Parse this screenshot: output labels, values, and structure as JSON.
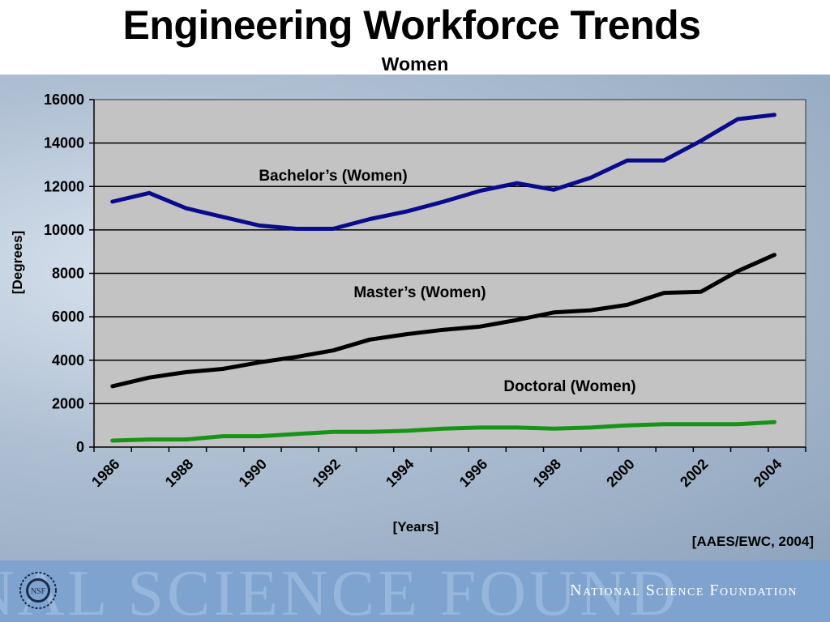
{
  "slide": {
    "title": "Engineering Workforce Trends",
    "subtitle": "Women",
    "source": "[AAES/EWC, 2004]"
  },
  "footer": {
    "watermark": "NAL SCIENCE FOUND",
    "org_name": "National Science Foundation",
    "logo_text": "NSF"
  },
  "chart_data": {
    "type": "line",
    "title": "",
    "xlabel": "[Years]",
    "ylabel": "[Degrees]",
    "ylim": [
      0,
      16000
    ],
    "yticks": [
      "0",
      "2000",
      "4000",
      "6000",
      "8000",
      "10000",
      "12000",
      "14000",
      "16000"
    ],
    "xticks": [
      "1986",
      "1988",
      "1990",
      "1992",
      "1994",
      "1996",
      "1998",
      "2000",
      "2002",
      "2004"
    ],
    "grid": true,
    "x": [
      1986,
      1987,
      1988,
      1989,
      1990,
      1991,
      1992,
      1993,
      1994,
      1995,
      1996,
      1997,
      1998,
      1999,
      2000,
      2001,
      2002,
      2003,
      2004
    ],
    "series": [
      {
        "name": "Bachelor’s (Women)",
        "color": "#0a0a8c",
        "values": [
          11300,
          11700,
          11000,
          10600,
          10200,
          10050,
          10050,
          10500,
          10850,
          11300,
          11800,
          12150,
          11850,
          12400,
          13200,
          13200,
          14100,
          15100,
          15300
        ]
      },
      {
        "name": "Master’s (Women)",
        "color": "#000000",
        "values": [
          2800,
          3200,
          3450,
          3600,
          3900,
          4150,
          4450,
          4950,
          5200,
          5400,
          5550,
          5850,
          6200,
          6300,
          6550,
          7100,
          7150,
          8100,
          8850
        ]
      },
      {
        "name": "Doctoral (Women)",
        "color": "#179417",
        "values": [
          300,
          350,
          350,
          500,
          500,
          600,
          700,
          700,
          750,
          850,
          900,
          900,
          850,
          900,
          1000,
          1050,
          1050,
          1050,
          1150
        ]
      }
    ]
  }
}
